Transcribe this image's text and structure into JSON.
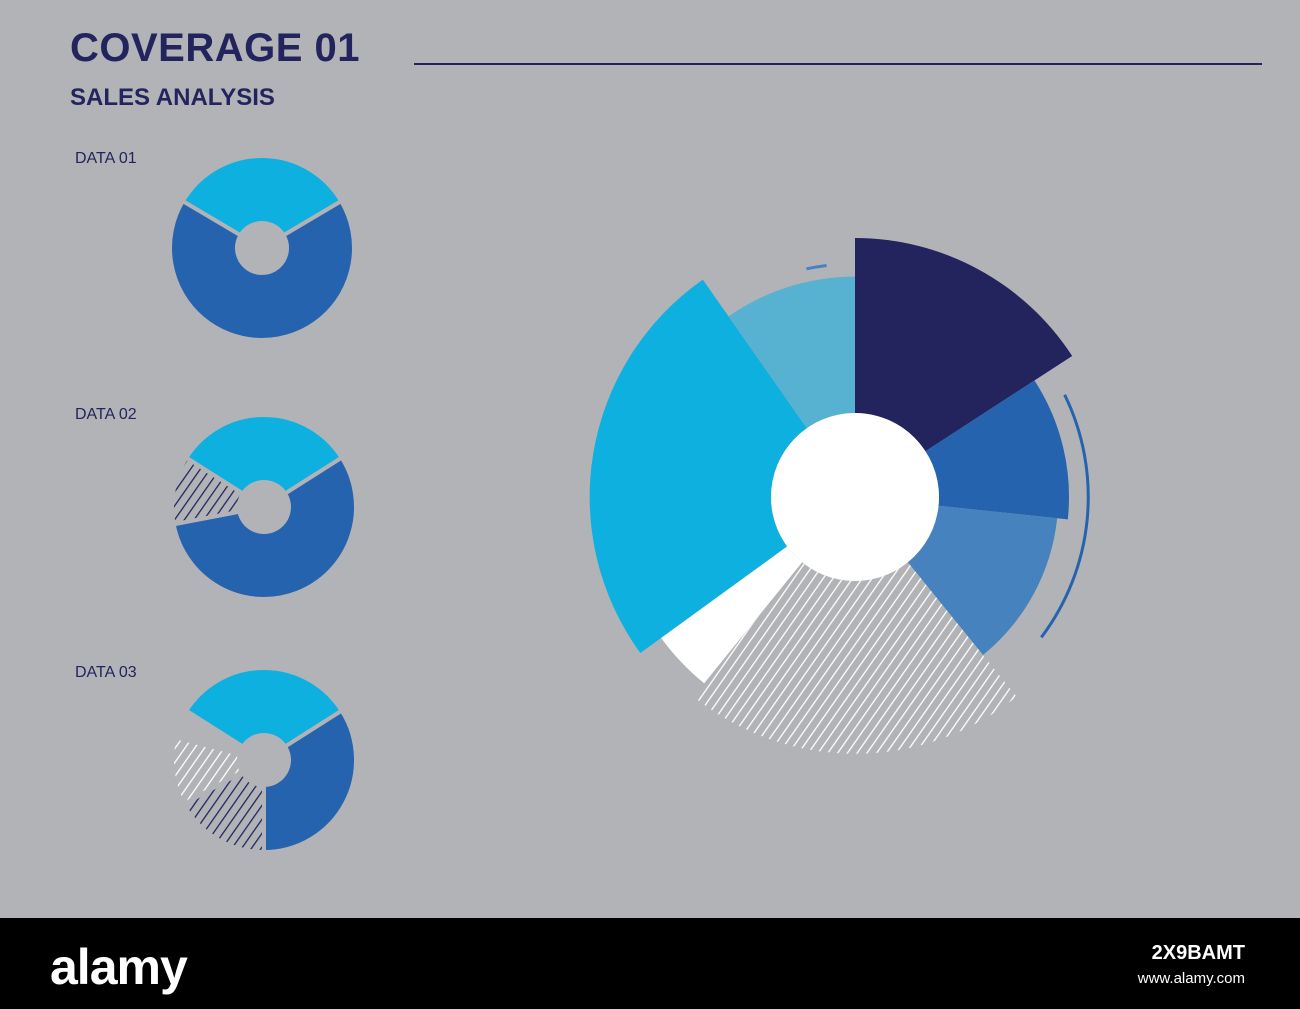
{
  "header": {
    "title": "COVERAGE 01",
    "subtitle": "SALES ANALYSIS"
  },
  "colors": {
    "background": "#b2b3b7",
    "navy": "#23245e",
    "blue": "#2663ae",
    "mid_blue": "#4682bd",
    "cyan": "#0eb0df",
    "light_cyan": "#57b2d1",
    "white": "#ffffff"
  },
  "chart_data": [
    {
      "type": "pie",
      "label": "DATA 01",
      "donut": true,
      "slices": [
        {
          "value": 33,
          "color": "#0eb0df",
          "pattern": "solid"
        },
        {
          "value": 67,
          "color": "#2663ae",
          "pattern": "solid"
        }
      ]
    },
    {
      "type": "pie",
      "label": "DATA 02",
      "donut": true,
      "slices": [
        {
          "value": 32,
          "color": "#0eb0df",
          "pattern": "solid"
        },
        {
          "value": 56,
          "color": "#2663ae",
          "pattern": "solid"
        },
        {
          "value": 12,
          "color": "#23245e",
          "pattern": "hatched"
        }
      ]
    },
    {
      "type": "pie",
      "label": "DATA 03",
      "donut": true,
      "slices": [
        {
          "value": 32,
          "color": "#0eb0df",
          "pattern": "solid"
        },
        {
          "value": 34,
          "color": "#2663ae",
          "pattern": "solid"
        },
        {
          "value": 17,
          "color": "#23245e",
          "pattern": "hatched"
        },
        {
          "value": 12,
          "color": "#ffffff",
          "pattern": "hatched"
        },
        {
          "value": 5,
          "color": "#b2b3b7",
          "pattern": "gap"
        }
      ]
    },
    {
      "type": "pie",
      "label": "",
      "donut": true,
      "variable_radius": true,
      "slices": [
        {
          "start_deg": 0,
          "end_deg": 57,
          "radius": 1.21,
          "color": "#23245e",
          "pattern": "solid"
        },
        {
          "start_deg": 57,
          "end_deg": 96,
          "radius": 1.0,
          "color": "#2663ae",
          "pattern": "solid"
        },
        {
          "start_deg": 96,
          "end_deg": 141,
          "radius": 0.95,
          "color": "#4682bd",
          "pattern": "solid"
        },
        {
          "start_deg": 141,
          "end_deg": 219,
          "radius": 1.2,
          "color": "#b2b3b7",
          "pattern": "hatched-white"
        },
        {
          "start_deg": 219,
          "end_deg": 234,
          "radius": 1.12,
          "color": "#ffffff",
          "pattern": "solid"
        },
        {
          "start_deg": 234,
          "end_deg": 325,
          "radius": 1.24,
          "color": "#0eb0df",
          "pattern": "solid"
        },
        {
          "start_deg": 325,
          "end_deg": 360,
          "radius": 1.03,
          "color": "#57b2d1",
          "pattern": "solid"
        }
      ],
      "outer_arcs": [
        {
          "start_deg": 348,
          "end_deg": 353,
          "color": "#4682bd"
        },
        {
          "start_deg": 64,
          "end_deg": 127,
          "color": "#2663ae"
        },
        {
          "start_deg": 210,
          "end_deg": 225,
          "color": "#ffffff"
        }
      ]
    }
  ],
  "footer": {
    "logo": "alamy",
    "image_id": "2X9BAMT",
    "url": "www.alamy.com"
  }
}
